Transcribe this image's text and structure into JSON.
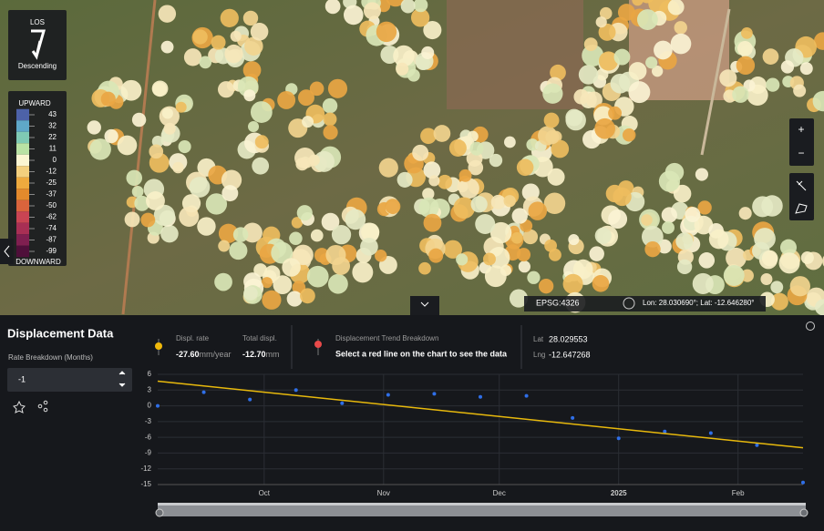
{
  "map": {
    "los_label": "LOS",
    "orientation": "Descending",
    "legend": {
      "top": "UPWARD",
      "bottom": "DOWNWARD",
      "ticks": [
        43,
        32,
        22,
        11,
        0,
        -12,
        -25,
        -37,
        -50,
        -62,
        -74,
        -87,
        -99
      ],
      "colors": [
        "#4d62a8",
        "#5fa8c8",
        "#7fcab4",
        "#b9e2a4",
        "#fbf6d2",
        "#f3d07e",
        "#eeaa3e",
        "#e38a2c",
        "#d9643c",
        "#c94453",
        "#a82f54",
        "#7f1f50",
        "#4f0f3a"
      ]
    },
    "crs": "EPSG:4326",
    "cursor": "Lon: 28.030690°; Lat: -12.646280°"
  },
  "panel": {
    "title": "Displacement Data",
    "rate_label": "Rate Breakdown (Months)",
    "rate_input": "-1",
    "displ_rate_label": "Displ. rate",
    "displ_rate": "-27.60",
    "displ_rate_unit": "mm/year",
    "total_label": "Total displ.",
    "total": "-12.70",
    "total_unit": "mm",
    "trend_label": "Displacement Trend Breakdown",
    "trend_hint": "Select a red line on the chart to see the data",
    "lat_label": "Lat",
    "lat": "28.029553",
    "lng_label": "Lng",
    "lng": "-12.647268"
  },
  "chart_data": {
    "type": "scatter",
    "categories": [
      null,
      null,
      null,
      null,
      null,
      null,
      null,
      null,
      null,
      null,
      null,
      null,
      null,
      null,
      null
    ],
    "series": [
      {
        "color": "#2f6fe8",
        "values": [
          0,
          2.6,
          1.2,
          3.0,
          0.5,
          2.1,
          2.3,
          1.7,
          1.9,
          -2.3,
          -6.2,
          -4.9,
          -5.2,
          -7.5,
          -14.6
        ]
      }
    ],
    "trend": {
      "color": "#e8b90c",
      "values": [
        4.7,
        -8.0
      ]
    },
    "xticks": [
      {
        "value": 2.31,
        "label": "Oct"
      },
      {
        "value": 4.9,
        "label": "Nov"
      },
      {
        "value": 7.41,
        "label": "Dec"
      },
      {
        "value": 10,
        "label": "2025"
      },
      {
        "value": 12.59,
        "label": "Feb"
      }
    ],
    "ylim": [
      -15,
      6
    ],
    "yticks": [
      6,
      3,
      0,
      -3,
      -6,
      -9,
      -12,
      -15
    ],
    "grid": true
  }
}
